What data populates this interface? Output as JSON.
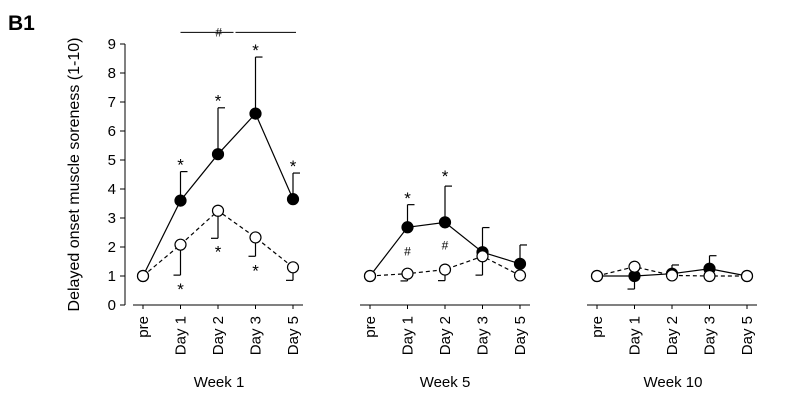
{
  "panel_label": "B1",
  "chart_data": {
    "type": "line",
    "ylabel": "Delayed onset muscle soreness (1-10)",
    "xlabel": "",
    "ylim": [
      0,
      9
    ],
    "yticks": [
      0,
      1,
      2,
      3,
      4,
      5,
      6,
      7,
      8,
      9
    ],
    "groups": [
      {
        "label": "Week 1",
        "categories": [
          "pre",
          "Day 1",
          "Day 2",
          "Day 3",
          "Day 5"
        ],
        "series": [
          {
            "marker": "filled",
            "line": "solid",
            "values": [
              1.0,
              3.6,
              5.2,
              6.6,
              3.65
            ],
            "err_up": [
              0,
              1.0,
              1.6,
              1.95,
              0.9
            ],
            "err_down": [
              0,
              0,
              0,
              0,
              0
            ]
          },
          {
            "marker": "open",
            "line": "dashed",
            "values": [
              1.0,
              2.08,
              3.25,
              2.33,
              1.3
            ],
            "err_up": [
              0,
              0,
              0,
              0,
              0
            ],
            "err_down": [
              0,
              1.05,
              0.95,
              0.65,
              0.45
            ]
          }
        ],
        "annotations": [
          {
            "text": "*",
            "index": 1,
            "value": 4.95
          },
          {
            "text": "*",
            "index": 2,
            "value": 7.15
          },
          {
            "text": "*",
            "index": 3,
            "value": 8.9
          },
          {
            "text": "*",
            "index": 4,
            "value": 4.9
          },
          {
            "text": "*",
            "index": 1,
            "value": 0.65
          },
          {
            "text": "*",
            "index": 2,
            "value": 1.95
          },
          {
            "text": "*",
            "index": 3,
            "value": 1.3
          }
        ],
        "bracket": {
          "text": "#",
          "value": 9.4
        }
      },
      {
        "label": "Week 5",
        "categories": [
          "pre",
          "Day 1",
          "Day 2",
          "Day 3",
          "Day 5"
        ],
        "series": [
          {
            "marker": "filled",
            "line": "solid",
            "values": [
              1.0,
              2.68,
              2.85,
              1.82,
              1.42
            ],
            "err_up": [
              0,
              0.78,
              1.25,
              0.85,
              0.65
            ],
            "err_down": [
              0,
              0,
              0,
              0,
              0
            ]
          },
          {
            "marker": "open",
            "line": "dashed",
            "values": [
              1.0,
              1.08,
              1.22,
              1.68,
              1.02
            ],
            "err_up": [
              0,
              0,
              0,
              0,
              0
            ],
            "err_down": [
              0,
              0.25,
              0.38,
              0.65,
              0
            ]
          }
        ],
        "annotations": [
          {
            "text": "*",
            "index": 1,
            "value": 3.8
          },
          {
            "text": "*",
            "index": 2,
            "value": 4.55
          },
          {
            "text": "#",
            "index": 1,
            "value": 1.85
          },
          {
            "text": "#",
            "index": 2,
            "value": 2.05
          }
        ]
      },
      {
        "label": "Week 10",
        "categories": [
          "pre",
          "Day 1",
          "Day 2",
          "Day 3",
          "Day 5"
        ],
        "series": [
          {
            "marker": "filled",
            "line": "solid",
            "values": [
              1.0,
              1.0,
              1.08,
              1.25,
              1.0
            ],
            "err_up": [
              0,
              0,
              0.3,
              0.45,
              0
            ],
            "err_down": [
              0,
              0.45,
              0,
              0,
              0
            ]
          },
          {
            "marker": "open",
            "line": "dashed",
            "values": [
              1.0,
              1.32,
              1.02,
              1.0,
              1.0
            ],
            "err_up": [
              0,
              0,
              0,
              0,
              0
            ],
            "err_down": [
              0,
              0,
              0,
              0,
              0
            ]
          }
        ],
        "annotations": []
      }
    ]
  }
}
